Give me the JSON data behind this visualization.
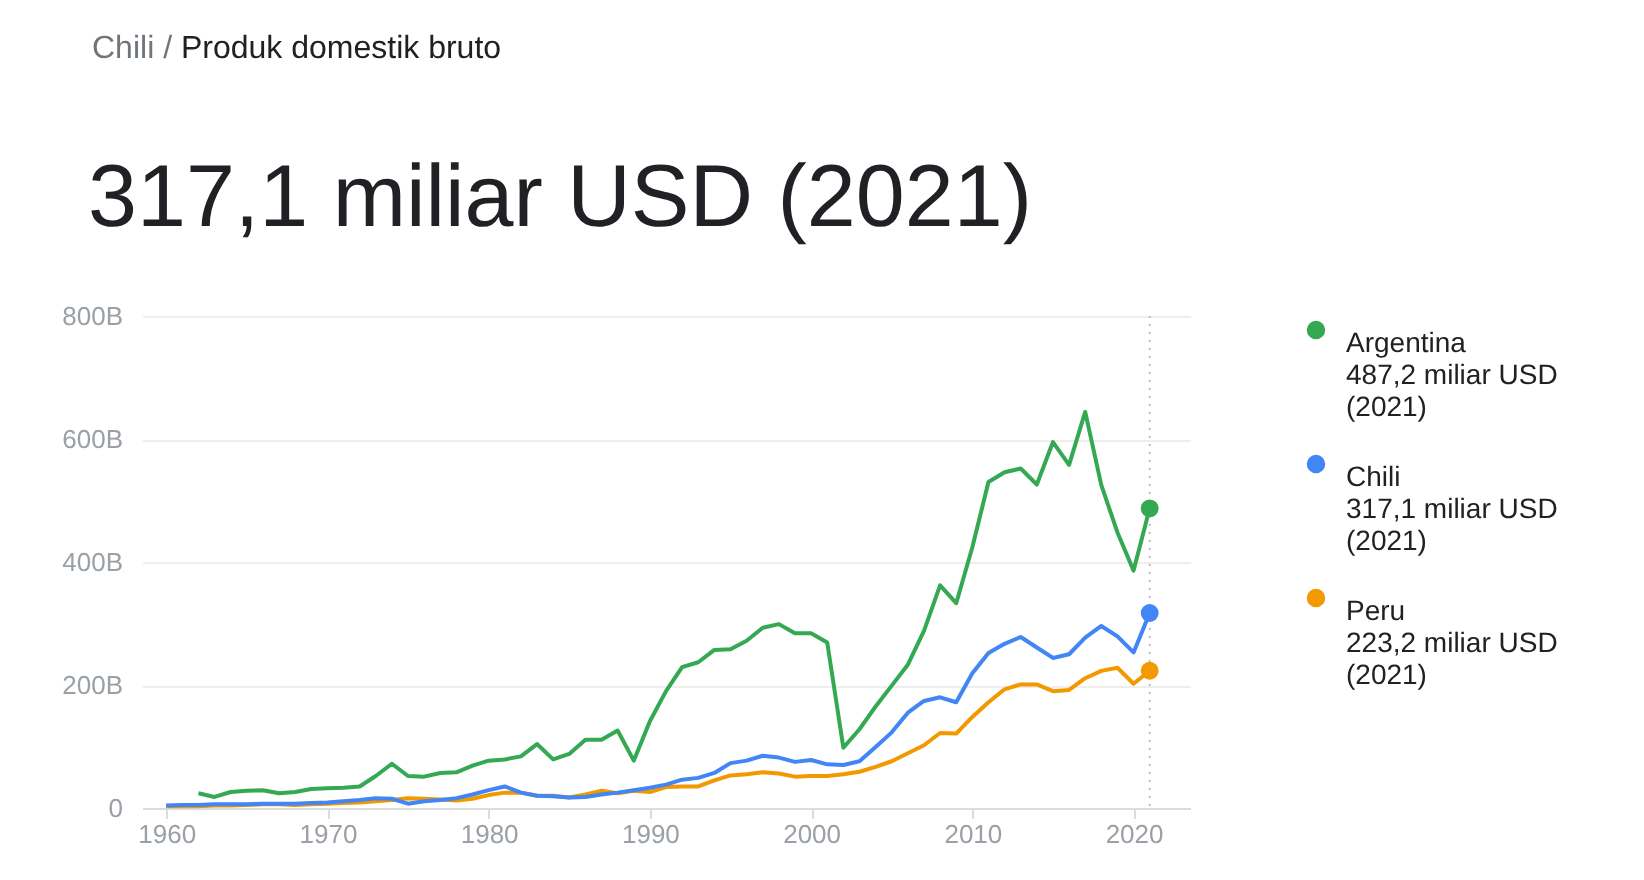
{
  "chart_data": {
    "type": "line",
    "title": "317,1 miliar USD (2021)",
    "subtitle": "Chili / Produk domestik bruto",
    "x": [
      1960,
      1961,
      1962,
      1963,
      1964,
      1965,
      1966,
      1967,
      1968,
      1969,
      1970,
      1971,
      1972,
      1973,
      1974,
      1975,
      1976,
      1977,
      1978,
      1979,
      1980,
      1981,
      1982,
      1983,
      1984,
      1985,
      1986,
      1987,
      1988,
      1989,
      1990,
      1991,
      1992,
      1993,
      1994,
      1995,
      1996,
      1997,
      1998,
      1999,
      2000,
      2001,
      2002,
      2003,
      2004,
      2005,
      2006,
      2007,
      2008,
      2009,
      2010,
      2011,
      2012,
      2013,
      2014,
      2015,
      2016,
      2017,
      2018,
      2019,
      2020,
      2021
    ],
    "series": [
      {
        "name": "Argentina",
        "color": "#34a853",
        "values": [
          null,
          null,
          24,
          18,
          26,
          28,
          29,
          24,
          26,
          31,
          32,
          33,
          35,
          52,
          72,
          52,
          51,
          57,
          58,
          69,
          77,
          79,
          84,
          104,
          79,
          88,
          111,
          111,
          126,
          77,
          141,
          190,
          229,
          237,
          257,
          258,
          272,
          293,
          299,
          284,
          284,
          269,
          98,
          128,
          165,
          199,
          233,
          288,
          362,
          333,
          424,
          530,
          546,
          552,
          526,
          595,
          558,
          644,
          525,
          448,
          386,
          487.2
        ]
      },
      {
        "name": "Chili",
        "color": "#4285f4",
        "values": [
          4,
          5,
          5,
          6,
          6,
          6,
          7,
          7,
          7,
          8,
          9,
          11,
          13,
          16,
          15,
          7,
          11,
          13,
          16,
          22,
          29,
          35,
          25,
          20,
          19,
          17,
          18,
          22,
          25,
          29,
          33,
          38,
          46,
          49,
          57,
          73,
          77,
          85,
          82,
          75,
          78,
          71,
          70,
          76,
          99,
          123,
          155,
          174,
          180,
          172,
          219,
          252,
          267,
          278,
          261,
          244,
          250,
          277,
          296,
          279,
          253,
          317.1
        ]
      },
      {
        "name": "Peru",
        "color": "#f29900",
        "values": [
          3,
          3,
          3,
          4,
          4,
          5,
          6,
          6,
          5,
          6,
          7,
          8,
          9,
          11,
          13,
          16,
          15,
          14,
          12,
          15,
          21,
          25,
          25,
          20,
          20,
          17,
          22,
          28,
          24,
          28,
          26,
          34,
          35,
          35,
          45,
          53,
          55,
          58,
          56,
          51,
          52,
          52,
          55,
          59,
          67,
          76,
          89,
          102,
          122,
          121,
          148,
          172,
          193,
          201,
          201,
          190,
          192,
          211,
          223,
          228,
          202,
          223.2
        ]
      }
    ],
    "annotations": [
      "487,2 miliar USD (2021)",
      "317,1 miliar USD (2021)",
      "223,2 miliar USD (2021)"
    ],
    "xlim": [
      1958.5,
      2023.5
    ],
    "xticks": [
      1960,
      1970,
      1980,
      1990,
      2000,
      2010,
      2020
    ],
    "ylim": [
      0,
      800
    ],
    "yticks": [
      {
        "value": 0,
        "label": "0"
      },
      {
        "value": 200,
        "label": "200B"
      },
      {
        "value": 400,
        "label": "400B"
      },
      {
        "value": 600,
        "label": "600B"
      },
      {
        "value": 800,
        "label": "800B"
      }
    ],
    "ref_lines": [
      {
        "axis": "x",
        "value": 2021,
        "line_style": "dotted",
        "color": "#bdbdbd"
      }
    ],
    "grid": "y",
    "legend": "right",
    "marker": "none",
    "line_style": "solid"
  }
}
